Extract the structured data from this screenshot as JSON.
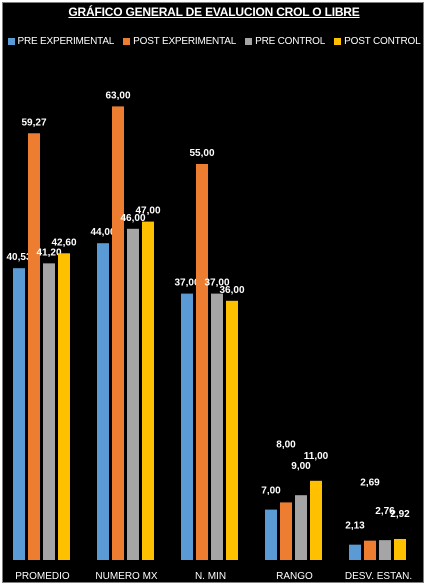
{
  "chart_data": {
    "type": "bar",
    "title": "GRÁFICO GENERAL DE EVALUCION CROL O LIBRE",
    "categories": [
      "PROMEDIO",
      "NUMERO MX",
      "N. MIN",
      "RANGO",
      "DESV. ESTAN."
    ],
    "series": [
      {
        "name": "PRE EXPERIMENTAL",
        "color": "#5b9bd5",
        "values": [
          40.53,
          44.0,
          37.0,
          7.0,
          2.13
        ],
        "labels": [
          "40,53",
          "44,00",
          "37,00",
          "7,00",
          "2,13"
        ]
      },
      {
        "name": "POST EXPERIMENTAL",
        "color": "#ed7d31",
        "values": [
          59.27,
          63.0,
          55.0,
          8.0,
          2.69
        ],
        "labels": [
          "59,27",
          "63,00",
          "55,00",
          "8,00",
          "2,69"
        ]
      },
      {
        "name": "PRE CONTROL",
        "color": "#a5a5a5",
        "values": [
          41.2,
          46.0,
          37.0,
          9.0,
          2.76
        ],
        "labels": [
          "41,20",
          "46,00",
          "37,00",
          "9,00",
          "2,76"
        ]
      },
      {
        "name": "POST CONTROL",
        "color": "#ffc000",
        "values": [
          42.6,
          47.0,
          36.0,
          11.0,
          2.92
        ],
        "labels": [
          "42,60",
          "47,00",
          "36,00",
          "11,00",
          "2,92"
        ]
      }
    ],
    "legend_position": "top",
    "grid": false
  }
}
